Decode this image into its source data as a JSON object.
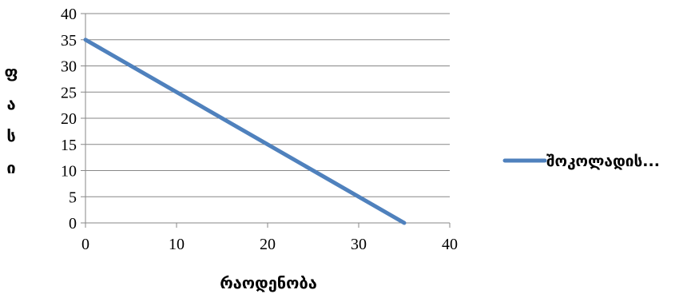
{
  "chart_data": {
    "type": "line",
    "x": [
      0,
      35
    ],
    "series": [
      {
        "name": "შოკოლადის...",
        "values": [
          35,
          0
        ],
        "color": "#4f81bd"
      }
    ],
    "xlim": [
      0,
      40
    ],
    "ylim": [
      0,
      40
    ],
    "xticks": [
      "0",
      "10",
      "20",
      "30",
      "40"
    ],
    "yticks": [
      "0",
      "5",
      "10",
      "15",
      "20",
      "25",
      "30",
      "35",
      "40"
    ],
    "xlabel": "რაოდენობა",
    "ylabel": "ფასი",
    "ylabel_chars": [
      "ფ",
      "ა",
      "ს",
      "ი"
    ],
    "grid": true,
    "legend": "right"
  }
}
